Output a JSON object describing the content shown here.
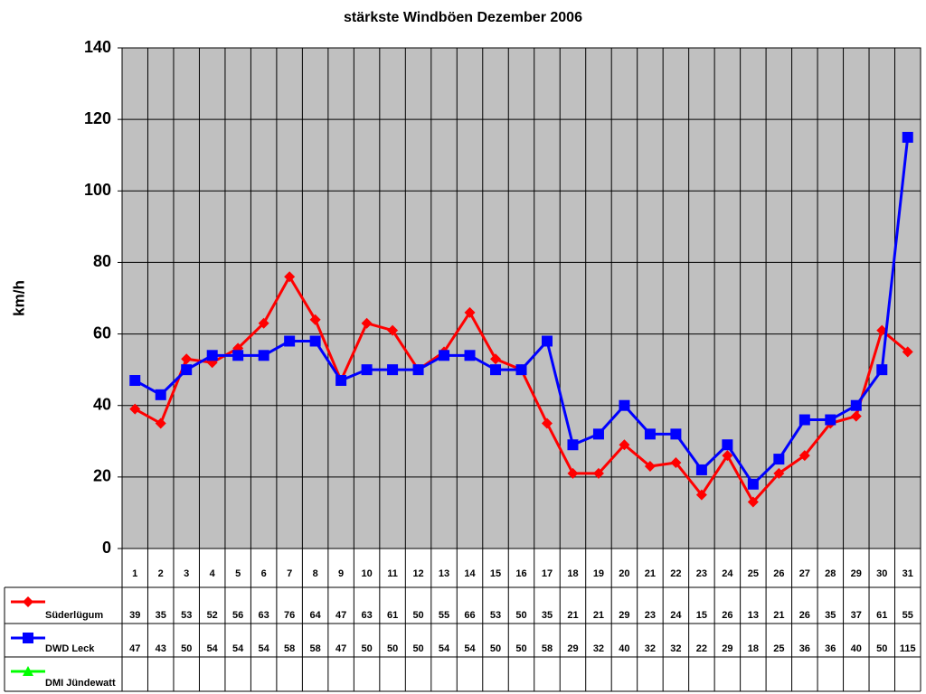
{
  "chart_data": {
    "type": "line",
    "title": "stärkste Windböen Dezember 2006",
    "y_label": "km/h",
    "categories": [
      "1",
      "2",
      "3",
      "4",
      "5",
      "6",
      "7",
      "8",
      "9",
      "10",
      "11",
      "12",
      "13",
      "14",
      "15",
      "16",
      "17",
      "18",
      "19",
      "20",
      "21",
      "22",
      "23",
      "24",
      "25",
      "26",
      "27",
      "28",
      "29",
      "30",
      "31"
    ],
    "series": [
      {
        "name": "Süderlügum",
        "color": "#ff0000",
        "marker": "diamond",
        "values": [
          39,
          35,
          53,
          52,
          56,
          63,
          76,
          64,
          47,
          63,
          61,
          50,
          55,
          66,
          53,
          50,
          35,
          21,
          21,
          29,
          23,
          24,
          15,
          26,
          13,
          21,
          26,
          35,
          37,
          61,
          55
        ]
      },
      {
        "name": "DWD Leck",
        "color": "#0000ff",
        "marker": "square",
        "values": [
          47,
          43,
          50,
          54,
          54,
          54,
          58,
          58,
          47,
          50,
          50,
          50,
          54,
          54,
          50,
          50,
          58,
          29,
          32,
          40,
          32,
          32,
          22,
          29,
          18,
          25,
          36,
          36,
          40,
          50,
          115
        ]
      },
      {
        "name": "DMI Jündewatt",
        "color": "#00ff00",
        "marker": "triangle",
        "values": [
          null,
          null,
          null,
          null,
          null,
          null,
          null,
          null,
          null,
          null,
          null,
          null,
          null,
          null,
          null,
          null,
          null,
          null,
          null,
          null,
          null,
          null,
          null,
          null,
          null,
          null,
          null,
          null,
          null,
          null,
          null
        ]
      }
    ],
    "ylim": [
      0,
      140
    ],
    "yticks": [
      0,
      20,
      40,
      60,
      80,
      100,
      120,
      140
    ],
    "grid": true,
    "plot_background": "#c0c0c0"
  }
}
